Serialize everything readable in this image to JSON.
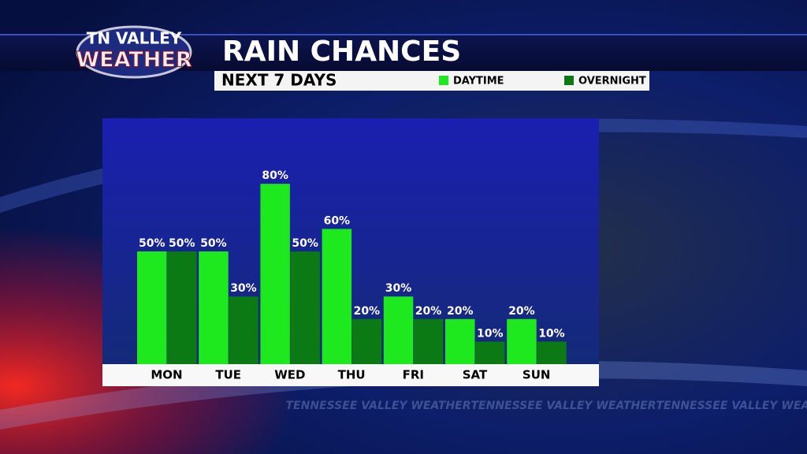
{
  "logo": {
    "line1": "TN VALLEY",
    "line2": "WEATHER"
  },
  "watermark": "TENNESSEE VALLEY WEATHER",
  "chart_data": {
    "type": "bar",
    "title": "RAIN CHANCES",
    "subtitle": "NEXT 7 DAYS",
    "categories": [
      "MON",
      "TUE",
      "WED",
      "THU",
      "FRI",
      "SAT",
      "SUN"
    ],
    "series": [
      {
        "name": "DAYTIME",
        "color": "#1ee81e",
        "values": [
          50,
          50,
          80,
          60,
          30,
          20,
          20
        ],
        "value_labels": [
          "50%",
          "50%",
          "80%",
          "60%",
          "30%",
          "20%",
          "20%"
        ]
      },
      {
        "name": "OVERNIGHT",
        "color": "#0b7a14",
        "values": [
          50,
          30,
          50,
          20,
          20,
          10,
          10
        ],
        "value_labels": [
          "50%",
          "30%",
          "50%",
          "20%",
          "20%",
          "10%",
          "10%"
        ]
      }
    ],
    "ylim": [
      0,
      100
    ],
    "legend": "top-right"
  }
}
